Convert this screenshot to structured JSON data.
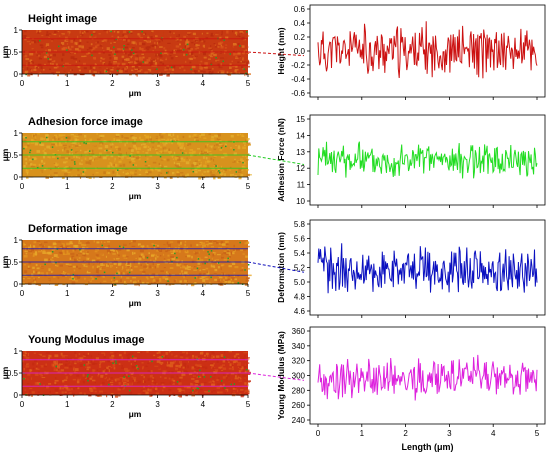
{
  "colors": {
    "height": "#cc1111",
    "adhesion": "#22dd22",
    "deformation": "#0a10c0",
    "young": "#dd22dd",
    "band": "#ee88ee"
  },
  "images": [
    {
      "title": "Height image",
      "xlabel": "μm",
      "ylabel": "μm",
      "xticks": [
        "0",
        "1",
        "2",
        "3",
        "4",
        "5"
      ],
      "yticks": [
        "0",
        "0.5",
        "1"
      ],
      "palette": [
        "#c83a12",
        "#d9561a",
        "#e0731f",
        "#b82a0e"
      ],
      "line_color": "#cc1111"
    },
    {
      "title": "Adhesion force image",
      "xlabel": "μm",
      "ylabel": "μm",
      "xticks": [
        "0",
        "1",
        "2",
        "3",
        "4",
        "5"
      ],
      "yticks": [
        "0",
        "0.5",
        "1"
      ],
      "palette": [
        "#d8921d",
        "#e6a822",
        "#c97a18",
        "#e3b030"
      ],
      "line_color": "#22cc22"
    },
    {
      "title": "Deformation image",
      "xlabel": "μm",
      "ylabel": "μm",
      "xticks": [
        "0",
        "1",
        "2",
        "3",
        "4",
        "5"
      ],
      "yticks": [
        "0",
        "0.5",
        "1"
      ],
      "palette": [
        "#d6781b",
        "#e4951f",
        "#c86216",
        "#e8a92a"
      ],
      "line_color": "#1111bb"
    },
    {
      "title": "Young Modulus image",
      "xlabel": "μm",
      "ylabel": "μm",
      "xticks": [
        "0",
        "1",
        "2",
        "3",
        "4",
        "5"
      ],
      "yticks": [
        "0",
        "0.5",
        "1"
      ],
      "palette": [
        "#cc3014",
        "#d84a18",
        "#c42a10",
        "#e0601c"
      ],
      "line_color": "#dd22dd"
    }
  ],
  "chart_data": [
    {
      "type": "line",
      "ylabel": "Height (nm)",
      "xlim": [
        0,
        5
      ],
      "ylim": [
        -0.6,
        0.6
      ],
      "yticks": [
        "-0.6",
        "-0.4",
        "-0.2",
        "0.0",
        "0.2",
        "0.4",
        "0.6"
      ],
      "xticks": [
        "0",
        "1",
        "2",
        "3",
        "4",
        "5"
      ],
      "base": 0.0,
      "amp": 0.55,
      "seed": 11,
      "series": [
        {
          "values_note": "",
          "color": "#cc1111"
        }
      ]
    },
    {
      "type": "line",
      "ylabel": "Adhesion Force (nN)",
      "xlim": [
        0,
        5
      ],
      "ylim": [
        10,
        15
      ],
      "yticks": [
        "10",
        "11",
        "12",
        "13",
        "14",
        "15"
      ],
      "xticks": [
        "0",
        "1",
        "2",
        "3",
        "4",
        "5"
      ],
      "base": 12.5,
      "amp": 1.6,
      "seed": 23,
      "series": [
        {
          "values_note": "",
          "color": "#22dd22"
        }
      ]
    },
    {
      "type": "line",
      "ylabel": "Deformation (nm)",
      "xlim": [
        0,
        5
      ],
      "ylim": [
        4.6,
        5.8
      ],
      "yticks": [
        "4.6",
        "4.8",
        "5.0",
        "5.2",
        "5.4",
        "5.6",
        "5.8"
      ],
      "xticks": [
        "0",
        "1",
        "2",
        "3",
        "4",
        "5"
      ],
      "base": 5.15,
      "amp": 0.5,
      "seed": 37,
      "series": [
        {
          "values_note": "",
          "color": "#0a10c0"
        }
      ]
    },
    {
      "type": "line",
      "ylabel": "Young Modulus (MPa)",
      "xlabel": "Length (μm)",
      "xlim": [
        0,
        5
      ],
      "ylim": [
        240,
        360
      ],
      "yticks": [
        "240",
        "260",
        "280",
        "300",
        "320",
        "340",
        "360"
      ],
      "xticks": [
        "0",
        "1",
        "2",
        "3",
        "4",
        "5"
      ],
      "base": 295,
      "amp": 42,
      "seed": 53,
      "series": [
        {
          "values_note": "",
          "color": "#dd22dd"
        }
      ]
    }
  ]
}
